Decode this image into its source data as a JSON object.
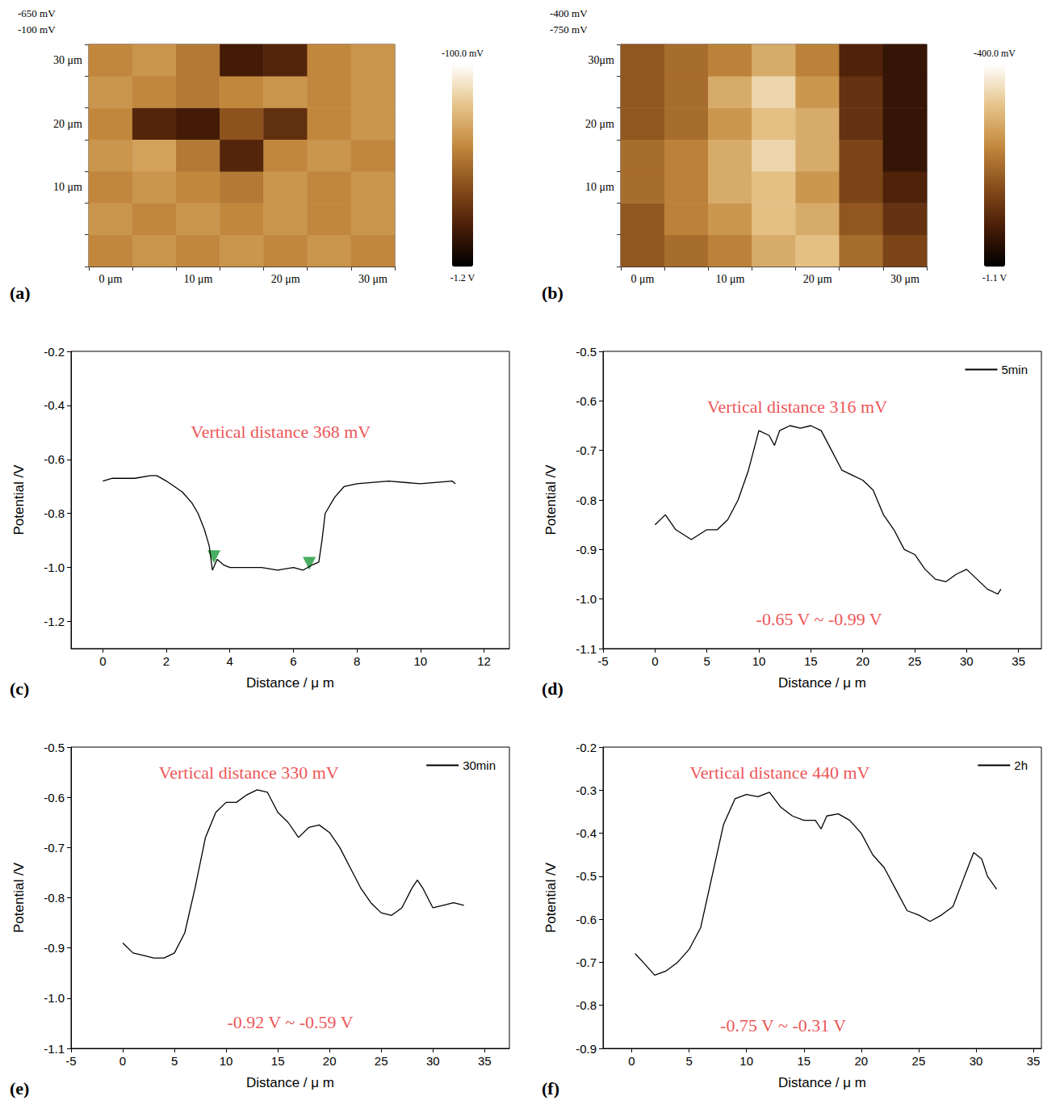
{
  "chart_data": [
    {
      "panel": "(a)",
      "type": "heatmap",
      "x": [
        "0 μm",
        null,
        "10 μm",
        null,
        "20 μm",
        null,
        "30 μm"
      ],
      "y": [
        null,
        null,
        "10 μm",
        null,
        "20 μm",
        null,
        "30 μm"
      ],
      "cells": [
        [
          -0.55,
          -0.5,
          -0.55,
          -0.5,
          -0.55,
          -0.5,
          -0.55
        ],
        [
          -0.5,
          -0.55,
          -0.5,
          -0.55,
          -0.5,
          -0.55,
          -0.5
        ],
        [
          -0.55,
          -0.5,
          -0.55,
          -0.6,
          -0.5,
          -0.55,
          -0.5
        ],
        [
          -0.5,
          -0.45,
          -0.6,
          -0.95,
          -0.55,
          -0.5,
          -0.55
        ],
        [
          -0.55,
          -0.95,
          -1.0,
          -0.75,
          -0.9,
          -0.55,
          -0.5
        ],
        [
          -0.5,
          -0.55,
          -0.6,
          -0.55,
          -0.5,
          -0.55,
          -0.5
        ],
        [
          -0.55,
          -0.5,
          -0.6,
          -1.0,
          -0.95,
          -0.55,
          -0.5
        ]
      ],
      "color_range": [
        -1.2,
        -0.1
      ],
      "color_labels": [
        "-1.2 V",
        "-100.0 mV"
      ],
      "colors": [
        "#000000",
        "#4a1e08",
        "#8a4f1c",
        "#c48a3e",
        "#e6c48a",
        "#ffffff"
      ],
      "z_labels": [
        "-650 mV",
        "-100 mV"
      ]
    },
    {
      "panel": "(b)",
      "type": "heatmap",
      "x": [
        "0 μm",
        null,
        "10 μm",
        null,
        "20 μm",
        null,
        "30 μm"
      ],
      "y": [
        null,
        null,
        "10 μm",
        null,
        "20 μm",
        null,
        "30μm"
      ],
      "cells": [
        [
          -0.8,
          -0.75,
          -0.7,
          -0.6,
          -0.55,
          -0.75,
          -0.85
        ],
        [
          -0.8,
          -0.7,
          -0.65,
          -0.55,
          -0.6,
          -0.8,
          -0.9
        ],
        [
          -0.75,
          -0.7,
          -0.6,
          -0.55,
          -0.65,
          -0.85,
          -0.95
        ],
        [
          -0.75,
          -0.7,
          -0.6,
          -0.5,
          -0.6,
          -0.85,
          -1.0
        ],
        [
          -0.8,
          -0.75,
          -0.65,
          -0.55,
          -0.6,
          -0.9,
          -1.0
        ],
        [
          -0.8,
          -0.75,
          -0.6,
          -0.5,
          -0.65,
          -0.9,
          -1.0
        ],
        [
          -0.8,
          -0.75,
          -0.7,
          -0.6,
          -0.7,
          -0.95,
          -1.0
        ]
      ],
      "color_range": [
        -1.1,
        -0.4
      ],
      "color_labels": [
        "-1.1 V",
        "-400.0 mV"
      ],
      "colors": [
        "#000000",
        "#4a1e08",
        "#8a4f1c",
        "#c48a3e",
        "#e6c48a",
        "#ffffff"
      ],
      "z_labels": [
        "-400 mV",
        "-750 mV"
      ]
    },
    {
      "panel": "(c)",
      "type": "line",
      "x": [
        0,
        0.3,
        0.6,
        1,
        1.5,
        1.7,
        2,
        2.5,
        2.8,
        3.0,
        3.2,
        3.35,
        3.45,
        3.6,
        3.8,
        4,
        4.5,
        5,
        5.5,
        6,
        6.3,
        6.6,
        6.8,
        6.9,
        7,
        7.3,
        7.6,
        8,
        9,
        10,
        11,
        11.1
      ],
      "series": [
        {
          "color": "#000000",
          "values": [
            -0.68,
            -0.67,
            -0.67,
            -0.67,
            -0.66,
            -0.66,
            -0.68,
            -0.72,
            -0.76,
            -0.8,
            -0.86,
            -0.92,
            -1.01,
            -0.97,
            -0.99,
            -1.0,
            -1.0,
            -1.0,
            -1.01,
            -1.0,
            -1.01,
            -0.99,
            -0.98,
            -0.9,
            -0.8,
            -0.74,
            -0.7,
            -0.69,
            -0.68,
            -0.69,
            -0.68,
            -0.69
          ]
        }
      ],
      "xlim": [
        -1,
        12.8
      ],
      "xticks": [
        0,
        2,
        4,
        6,
        8,
        10,
        12
      ],
      "ylim": [
        -1.3,
        -0.2
      ],
      "yticks": [
        -1.2,
        {
          "value": -1,
          "label": "-1.0"
        },
        -0.8,
        -0.6,
        -0.4,
        -0.2
      ],
      "x_label": "Distance / μ m",
      "y_label": "Potential /V",
      "annotations": [
        {
          "text": "Vertical distance 368 mV",
          "x": 5.6,
          "y": -0.497,
          "color": "#e8262a"
        }
      ],
      "markers": {
        "x": [
          3.5,
          6.5
        ],
        "y": [
          -0.96,
          -0.985
        ],
        "color": "#1a9a3a",
        "marker": "triangle-down"
      },
      "grid": false
    },
    {
      "panel": "(d)",
      "type": "line",
      "x": [
        0,
        1,
        2,
        3.5,
        5,
        6,
        7,
        8,
        9,
        10,
        11,
        11.5,
        12,
        13,
        14,
        15,
        16,
        17,
        18,
        19,
        20,
        21,
        22,
        23,
        24,
        25,
        26,
        27,
        28,
        29,
        30,
        31,
        32,
        33,
        33.3
      ],
      "series": [
        {
          "name": "5min",
          "color": "#000000",
          "values": [
            -0.85,
            -0.83,
            -0.86,
            -0.88,
            -0.86,
            -0.86,
            -0.84,
            -0.8,
            -0.74,
            -0.66,
            -0.67,
            -0.69,
            -0.66,
            -0.65,
            -0.655,
            -0.65,
            -0.66,
            -0.7,
            -0.74,
            -0.75,
            -0.76,
            -0.78,
            -0.83,
            -0.86,
            -0.9,
            -0.91,
            -0.94,
            -0.96,
            -0.965,
            -0.95,
            -0.94,
            -0.96,
            -0.98,
            -0.99,
            -0.98
          ]
        }
      ],
      "xlim": [
        -5,
        37.2
      ],
      "xticks": [
        -5,
        0,
        5,
        10,
        15,
        20,
        25,
        30,
        35
      ],
      "ylim": [
        -1.1,
        -0.5
      ],
      "yticks": [
        -1.1,
        {
          "value": -1,
          "label": "-1.0"
        },
        -0.9,
        -0.8,
        -0.7,
        -0.6,
        -0.5
      ],
      "x_label": "Distance / μ m",
      "y_label": "Potential /V",
      "annotations": [
        {
          "text": "Vertical distance 316 mV",
          "x": 13.7,
          "y": -0.612,
          "color": "#e8262a"
        },
        {
          "text": "-0.65 V ~ -0.99 V",
          "x": 15.8,
          "y": -1.041,
          "color": "#e8262a"
        }
      ],
      "legend": "upper right",
      "grid": false
    },
    {
      "panel": "(e)",
      "type": "line",
      "x": [
        0,
        1,
        2,
        3,
        4,
        5,
        6,
        7,
        8,
        9,
        10,
        11,
        12,
        13,
        14,
        15,
        16,
        17,
        18,
        19,
        20,
        21,
        22,
        23,
        24,
        25,
        26,
        27,
        28,
        28.5,
        29,
        30,
        31,
        32,
        33
      ],
      "series": [
        {
          "name": "30min",
          "color": "#000000",
          "values": [
            -0.89,
            -0.91,
            -0.915,
            -0.92,
            -0.92,
            -0.91,
            -0.87,
            -0.78,
            -0.68,
            -0.63,
            -0.61,
            -0.61,
            -0.595,
            -0.585,
            -0.59,
            -0.63,
            -0.65,
            -0.68,
            -0.66,
            -0.655,
            -0.67,
            -0.7,
            -0.74,
            -0.78,
            -0.81,
            -0.83,
            -0.835,
            -0.82,
            -0.78,
            -0.765,
            -0.78,
            -0.82,
            -0.815,
            -0.81,
            -0.815
          ]
        }
      ],
      "xlim": [
        -5,
        37.4
      ],
      "xticks": [
        -5,
        0,
        5,
        10,
        15,
        20,
        25,
        30,
        35
      ],
      "ylim": [
        -1.1,
        -0.5
      ],
      "yticks": [
        -1.1,
        {
          "value": -1,
          "label": "-1.0"
        },
        -0.9,
        -0.8,
        -0.7,
        -0.6,
        -0.5
      ],
      "x_label": "Distance / μ m",
      "y_label": "Potential /V",
      "annotations": [
        {
          "text": "Vertical distance 330 mV",
          "x": 12.2,
          "y": -0.551,
          "color": "#e8262a"
        },
        {
          "text": "-0.92 V ~ -0.59 V",
          "x": 16.2,
          "y": -1.048,
          "color": "#e8262a"
        }
      ],
      "legend": "upper right",
      "grid": false
    },
    {
      "panel": "(f)",
      "type": "line",
      "x": [
        0.3,
        1,
        2,
        3,
        4,
        5,
        6,
        7,
        8,
        9,
        10,
        11,
        12,
        13,
        14,
        15,
        16,
        16.5,
        17,
        18,
        19,
        20,
        21,
        22,
        23,
        24,
        25,
        26,
        27,
        28,
        29,
        29.8,
        30.5,
        31,
        31.8
      ],
      "series": [
        {
          "name": "2h",
          "color": "#000000",
          "values": [
            -0.68,
            -0.7,
            -0.73,
            -0.72,
            -0.7,
            -0.67,
            -0.62,
            -0.5,
            -0.38,
            -0.32,
            -0.31,
            -0.315,
            -0.305,
            -0.34,
            -0.36,
            -0.37,
            -0.37,
            -0.39,
            -0.36,
            -0.355,
            -0.37,
            -0.4,
            -0.45,
            -0.48,
            -0.53,
            -0.58,
            -0.59,
            -0.605,
            -0.59,
            -0.57,
            -0.5,
            -0.445,
            -0.46,
            -0.5,
            -0.53
          ]
        }
      ],
      "xlim": [
        -2.5,
        35.7
      ],
      "xticks": [
        0,
        5,
        10,
        15,
        20,
        25,
        30,
        35
      ],
      "ylim": [
        -0.9,
        -0.2
      ],
      "yticks": [
        -0.9,
        -0.8,
        -0.7,
        -0.6,
        -0.5,
        -0.4,
        -0.3,
        -0.2
      ],
      "x_label": "Distance / μ m",
      "y_label": "Potential /V",
      "annotations": [
        {
          "text": "Vertical distance 440 mV",
          "x": 12.9,
          "y": -0.259,
          "color": "#e8262a"
        },
        {
          "text": "-0.75 V ~ -0.31 V",
          "x": 13.2,
          "y": -0.847,
          "color": "#e8262a"
        }
      ],
      "legend": "upper right",
      "grid": false
    }
  ]
}
